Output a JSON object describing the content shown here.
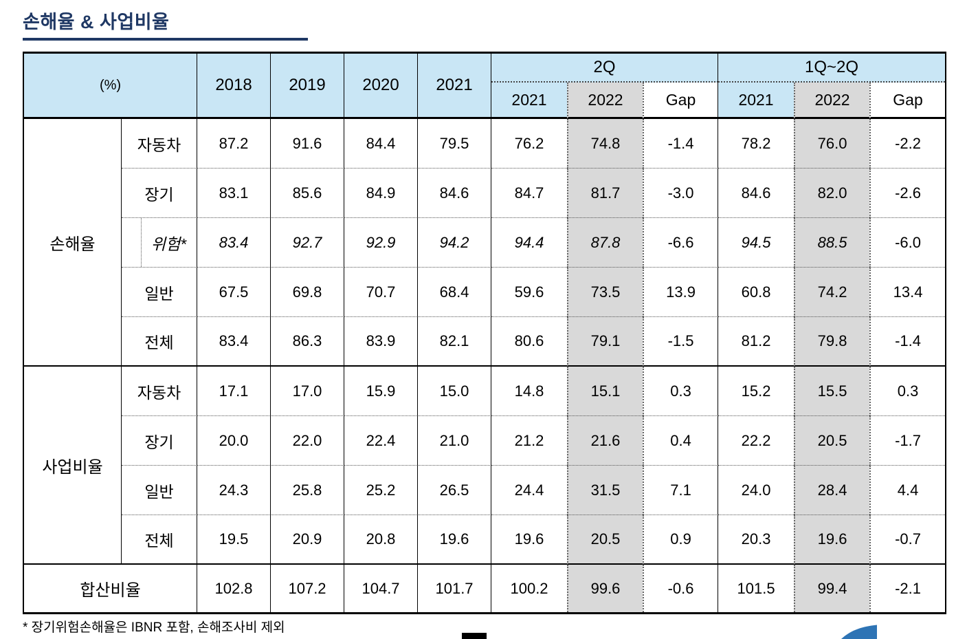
{
  "title": "손해율 & 사업비율",
  "footnote": "* 장기위험손해율은 IBNR 포함, 손해조사비 제외",
  "colors": {
    "header_blue": "#C9E6F5",
    "column_gray": "#D9D9D9",
    "title_navy": "#1F3864",
    "swoosh_blue": "#2E74B5"
  },
  "table": {
    "unit_label": "(%)",
    "year_headers": [
      "2018",
      "2019",
      "2020",
      "2021"
    ],
    "group_headers": [
      {
        "label": "2Q",
        "sub": [
          "2021",
          "2022",
          "Gap"
        ]
      },
      {
        "label": "1Q~2Q",
        "sub": [
          "2021",
          "2022",
          "Gap"
        ]
      }
    ],
    "sections": [
      {
        "group": "손해율",
        "rows": [
          {
            "label": "자동차",
            "italic": false,
            "years": [
              "87.2",
              "91.6",
              "84.4",
              "79.5"
            ],
            "q2": [
              "76.2",
              "74.8",
              "-1.4"
            ],
            "h1": [
              "78.2",
              "76.0",
              "-2.2"
            ]
          },
          {
            "label": "장기",
            "italic": false,
            "years": [
              "83.1",
              "85.6",
              "84.9",
              "84.6"
            ],
            "q2": [
              "84.7",
              "81.7",
              "-3.0"
            ],
            "h1": [
              "84.6",
              "82.0",
              "-2.6"
            ]
          },
          {
            "label": "위험*",
            "italic": true,
            "years": [
              "83.4",
              "92.7",
              "92.9",
              "94.2"
            ],
            "q2": [
              "94.4",
              "87.8",
              "-6.6"
            ],
            "h1": [
              "94.5",
              "88.5",
              "-6.0"
            ]
          },
          {
            "label": "일반",
            "italic": false,
            "years": [
              "67.5",
              "69.8",
              "70.7",
              "68.4"
            ],
            "q2": [
              "59.6",
              "73.5",
              "13.9"
            ],
            "h1": [
              "60.8",
              "74.2",
              "13.4"
            ]
          },
          {
            "label": "전체",
            "italic": false,
            "years": [
              "83.4",
              "86.3",
              "83.9",
              "82.1"
            ],
            "q2": [
              "80.6",
              "79.1",
              "-1.5"
            ],
            "h1": [
              "81.2",
              "79.8",
              "-1.4"
            ]
          }
        ]
      },
      {
        "group": "사업비율",
        "rows": [
          {
            "label": "자동차",
            "italic": false,
            "years": [
              "17.1",
              "17.0",
              "15.9",
              "15.0"
            ],
            "q2": [
              "14.8",
              "15.1",
              "0.3"
            ],
            "h1": [
              "15.2",
              "15.5",
              "0.3"
            ]
          },
          {
            "label": "장기",
            "italic": false,
            "years": [
              "20.0",
              "22.0",
              "22.4",
              "21.0"
            ],
            "q2": [
              "21.2",
              "21.6",
              "0.4"
            ],
            "h1": [
              "22.2",
              "20.5",
              "-1.7"
            ]
          },
          {
            "label": "일반",
            "italic": false,
            "years": [
              "24.3",
              "25.8",
              "25.2",
              "26.5"
            ],
            "q2": [
              "24.4",
              "31.5",
              "7.1"
            ],
            "h1": [
              "24.0",
              "28.4",
              "4.4"
            ]
          },
          {
            "label": "전체",
            "italic": false,
            "years": [
              "19.5",
              "20.9",
              "20.8",
              "19.6"
            ],
            "q2": [
              "19.6",
              "20.5",
              "0.9"
            ],
            "h1": [
              "20.3",
              "19.6",
              "-0.7"
            ]
          }
        ]
      }
    ],
    "total_row": {
      "label": "합산비율",
      "years": [
        "102.8",
        "107.2",
        "104.7",
        "101.7"
      ],
      "q2": [
        "100.2",
        "99.6",
        "-0.6"
      ],
      "h1": [
        "101.5",
        "99.4",
        "-2.1"
      ]
    }
  }
}
